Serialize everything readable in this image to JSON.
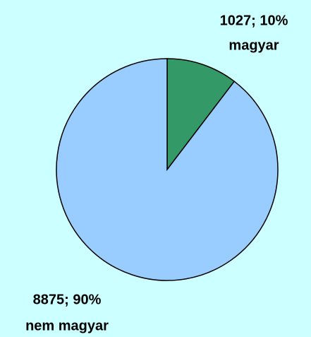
{
  "chart_data": {
    "type": "pie",
    "categories": [
      "magyar",
      "nem magyar"
    ],
    "values": [
      1027,
      8875
    ],
    "value_labels": [
      "1027; 10%",
      "8875; 90%"
    ],
    "colors": [
      "#339966",
      "#99ccff"
    ]
  }
}
